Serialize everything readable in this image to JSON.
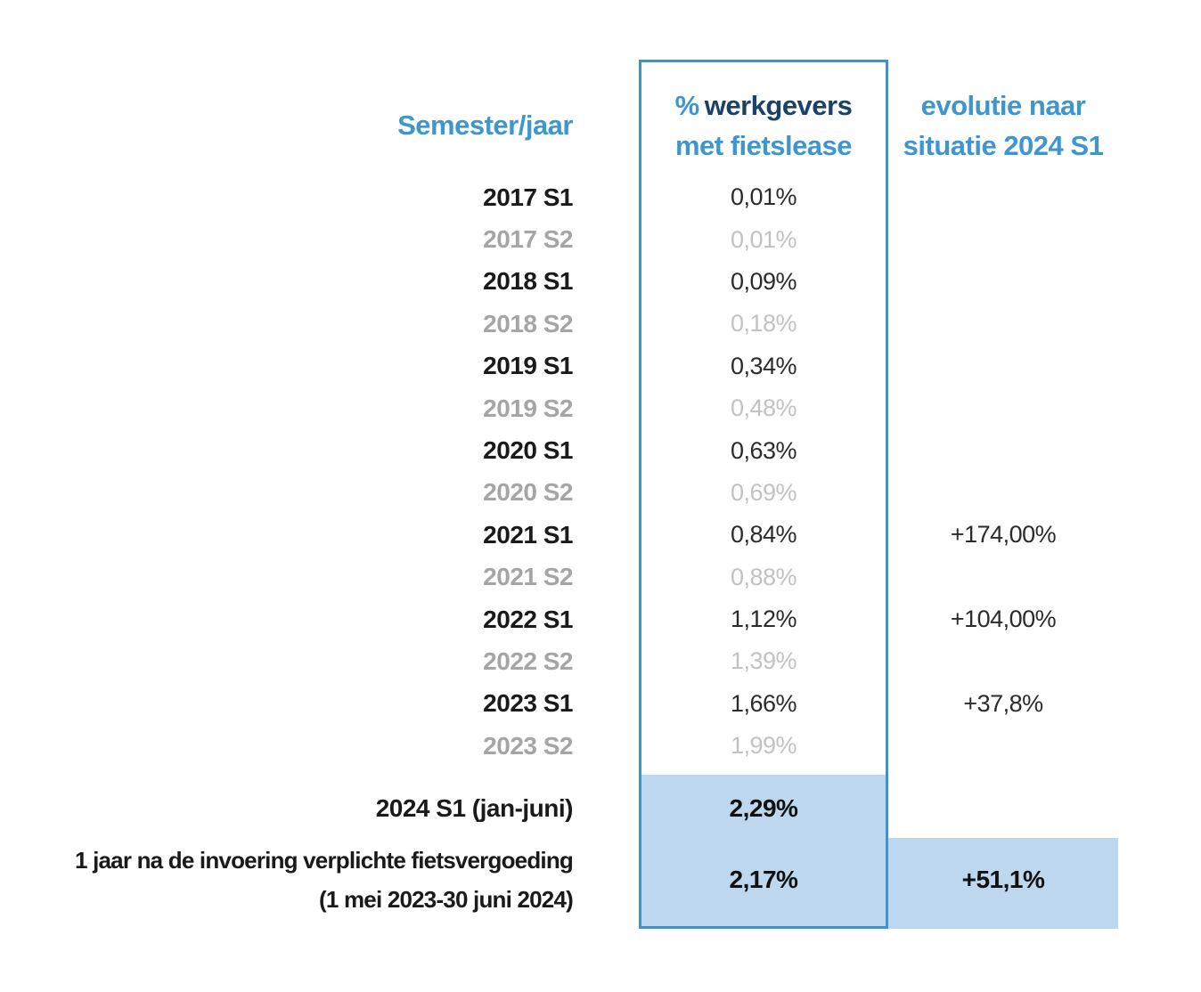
{
  "colors": {
    "accent_blue": "#3E96CF",
    "dark_navy": "#1A4168",
    "box_border_blue": "#3E93CC",
    "highlight_fill": "#BDD7EE",
    "muted_label_gray": "#A5A5A5",
    "muted_value_gray": "#C2C2C2",
    "text_black": "#1A1A1A"
  },
  "header": {
    "semester": "Semester/jaar",
    "pct_symbol": "%",
    "pct_word": "werkgevers",
    "pct_line2": "met fietslease",
    "evo_line1": "evolutie naar",
    "evo_line2": "situatie 2024 S1"
  },
  "rows": [
    {
      "label": "2017 S1",
      "value": "0,01%",
      "evolution": ""
    },
    {
      "label": "2017 S2",
      "value": "0,01%",
      "evolution": ""
    },
    {
      "label": "2018 S1",
      "value": "0,09%",
      "evolution": ""
    },
    {
      "label": "2018 S2",
      "value": "0,18%",
      "evolution": ""
    },
    {
      "label": "2019 S1",
      "value": "0,34%",
      "evolution": ""
    },
    {
      "label": "2019 S2",
      "value": "0,48%",
      "evolution": ""
    },
    {
      "label": "2020 S1",
      "value": "0,63%",
      "evolution": ""
    },
    {
      "label": "2020 S2",
      "value": "0,69%",
      "evolution": ""
    },
    {
      "label": "2021 S1",
      "value": "0,84%",
      "evolution": "+174,00%"
    },
    {
      "label": "2021 S2",
      "value": "0,88%",
      "evolution": ""
    },
    {
      "label": "2022 S1",
      "value": "1,12%",
      "evolution": "+104,00%"
    },
    {
      "label": "2022 S2",
      "value": "1,39%",
      "evolution": ""
    },
    {
      "label": "2023 S1",
      "value": "1,66%",
      "evolution": "+37,8%"
    },
    {
      "label": "2023 S2",
      "value": "1,99%",
      "evolution": ""
    }
  ],
  "highlight_rows": {
    "row_2024": {
      "label": "2024 S1 (jan-juni)",
      "value": "2,29%",
      "evolution": ""
    },
    "row_year_after": {
      "label_line1": "1 jaar na de invoering verplichte fietsvergoeding",
      "label_line2": "(1 mei 2023-30 juni 2024)",
      "value": "2,17%",
      "evolution": "+51,1%"
    }
  },
  "chart_data": {
    "type": "table",
    "columns": [
      "Semester/jaar",
      "% werkgevers met fietslease",
      "evolutie naar situatie 2024 S1"
    ],
    "rows": [
      [
        "2017 S1",
        "0,01%",
        ""
      ],
      [
        "2017 S2",
        "0,01%",
        ""
      ],
      [
        "2018 S1",
        "0,09%",
        ""
      ],
      [
        "2018 S2",
        "0,18%",
        ""
      ],
      [
        "2019 S1",
        "0,34%",
        ""
      ],
      [
        "2019 S2",
        "0,48%",
        ""
      ],
      [
        "2020 S1",
        "0,63%",
        ""
      ],
      [
        "2020 S2",
        "0,69%",
        ""
      ],
      [
        "2021 S1",
        "0,84%",
        "+174,00%"
      ],
      [
        "2021 S2",
        "0,88%",
        ""
      ],
      [
        "2022 S1",
        "1,12%",
        "+104,00%"
      ],
      [
        "2022 S2",
        "1,39%",
        ""
      ],
      [
        "2023 S1",
        "1,66%",
        "+37,8%"
      ],
      [
        "2023 S2",
        "1,99%",
        ""
      ],
      [
        "2024 S1 (jan-juni)",
        "2,29%",
        ""
      ],
      [
        "1 jaar na de invoering verplichte fietsvergoeding (1 mei 2023-30 juni 2024)",
        "2,17%",
        "+51,1%"
      ]
    ],
    "highlighted_row_indices": [
      14,
      15
    ],
    "values_numeric_pct": [
      0.01,
      0.01,
      0.09,
      0.18,
      0.34,
      0.48,
      0.63,
      0.69,
      0.84,
      0.88,
      1.12,
      1.39,
      1.66,
      1.99,
      2.29,
      2.17
    ]
  }
}
